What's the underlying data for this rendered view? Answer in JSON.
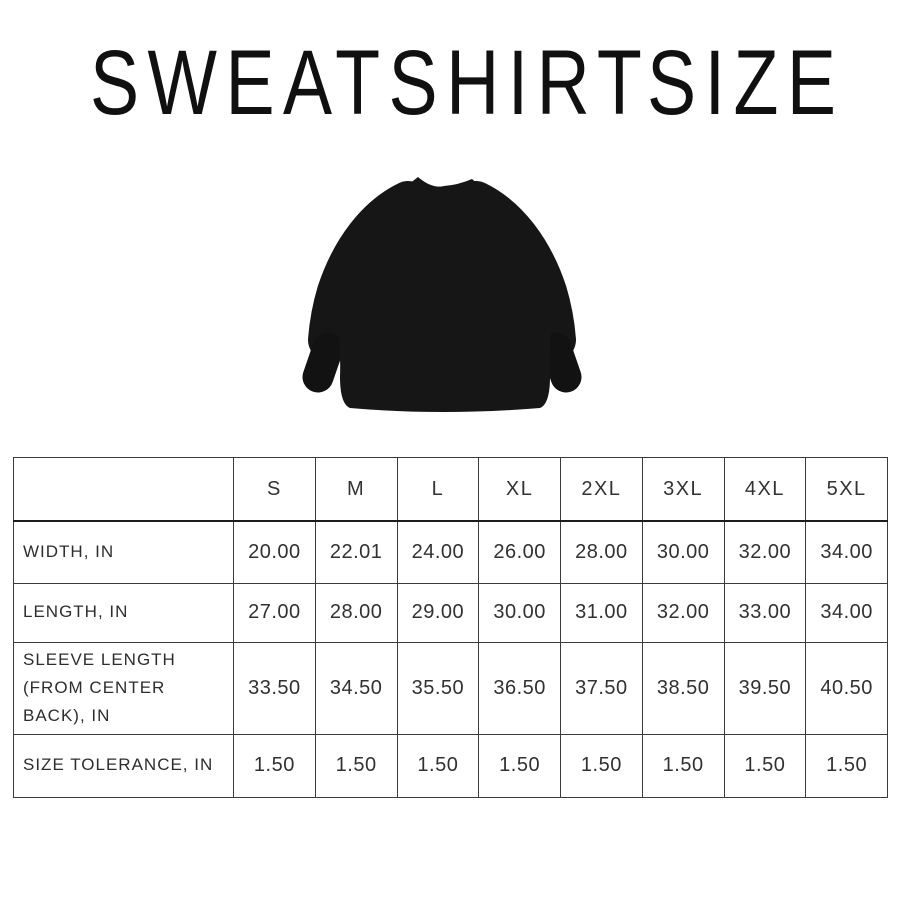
{
  "title": "SWEATSHIRT SIZE",
  "hero_image": {
    "name": "black-sweatshirt-back"
  },
  "chart_data": {
    "type": "table",
    "title": "SWEATSHIRT SIZE",
    "corner_label": "",
    "columns": [
      "S",
      "M",
      "L",
      "XL",
      "2XL",
      "3XL",
      "4XL",
      "5XL"
    ],
    "rows": [
      {
        "label": "WIDTH, IN",
        "values": [
          "20.00",
          "22.01",
          "24.00",
          "26.00",
          "28.00",
          "30.00",
          "32.00",
          "34.00"
        ]
      },
      {
        "label": "LENGTH, IN",
        "values": [
          "27.00",
          "28.00",
          "29.00",
          "30.00",
          "31.00",
          "32.00",
          "33.00",
          "34.00"
        ]
      },
      {
        "label": "SLEEVE LENGTH (FROM CENTER BACK), IN",
        "values": [
          "33.50",
          "34.50",
          "35.50",
          "36.50",
          "37.50",
          "38.50",
          "39.50",
          "40.50"
        ]
      },
      {
        "label": "SIZE TOLERANCE, IN",
        "values": [
          "1.50",
          "1.50",
          "1.50",
          "1.50",
          "1.50",
          "1.50",
          "1.50",
          "1.50"
        ]
      }
    ]
  },
  "colors": {
    "background": "#ffffff",
    "text": "#2d2d2d",
    "table_border": "#3b3b3b",
    "garment": "#161616"
  }
}
